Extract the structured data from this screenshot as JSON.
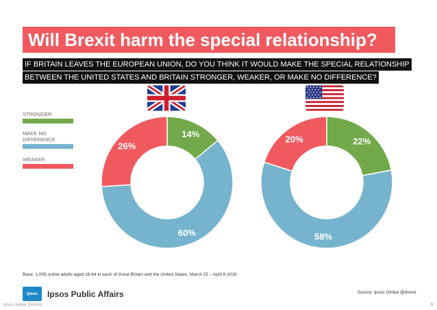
{
  "title": "Will Brexit harm the special relationship?",
  "question": {
    "line1": "IF BRITAIN LEAVES THE EUROPEAN UNION, DO YOU THINK IT WOULD MAKE THE SPECIAL RELATIONSHIP",
    "line2": "BETWEEN THE UNITED STATES AND BRITAIN STRONGER, WEAKER, OR MAKE NO DIFFERENCE?"
  },
  "legend": [
    {
      "label": "STRONGER",
      "color": "#72a94a"
    },
    {
      "label": "MAKE NO DIFFERENCE",
      "color": "#76b4ce"
    },
    {
      "label": "WEAKER",
      "color": "#f05a5f"
    }
  ],
  "flags": {
    "left": "uk-flag",
    "right": "us-flag"
  },
  "chart_data": [
    {
      "type": "pie",
      "title": "",
      "categories": [
        "STRONGER",
        "MAKE NO DIFFERENCE",
        "WEAKER"
      ],
      "values": [
        14,
        60,
        26
      ],
      "labels": [
        "14%",
        "60%",
        "26%"
      ],
      "colors": [
        "#72a94a",
        "#76b4ce",
        "#f05a5f"
      ]
    },
    {
      "type": "pie",
      "title": "",
      "categories": [
        "STRONGER",
        "MAKE NO DIFFERENCE",
        "WEAKER"
      ],
      "values": [
        22,
        58,
        20
      ],
      "labels": [
        "22%",
        "58%",
        "20%"
      ],
      "colors": [
        "#72a94a",
        "#76b4ce",
        "#f05a5f"
      ]
    }
  ],
  "base_note": "Base: 1,005 online adults aged 16-64 in each of Great Britain and the United States, March 25 – April 8 2016",
  "brand": "Ipsos Public Affairs",
  "logo_text": "Ipsos",
  "source": "Source: Ipsos Global @dvisor",
  "footer_left": "Ipsos Global @dvisor",
  "page_number": "3"
}
